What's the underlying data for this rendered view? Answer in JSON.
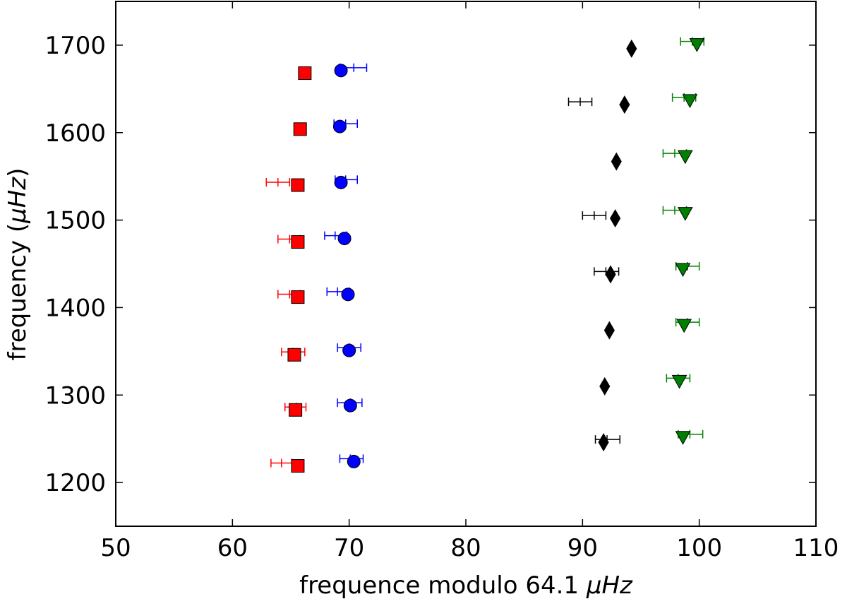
{
  "chart_data": {
    "type": "scatter",
    "title": "",
    "xlabel_prefix": "frequence modulo 64.1 ",
    "xlabel_unit": "μHz",
    "ylabel_prefix": "frequency (",
    "ylabel_unit": "μHz",
    "ylabel_suffix": ")",
    "xlim": [
      50,
      110
    ],
    "ylim": [
      1150,
      1750
    ],
    "xticks": [
      50,
      60,
      70,
      80,
      90,
      100,
      110
    ],
    "yticks": [
      1200,
      1300,
      1400,
      1500,
      1600,
      1700
    ],
    "grid": false,
    "series": [
      {
        "name": "red-squares",
        "marker": "square",
        "color": "#ff0000",
        "points": [
          {
            "x": 65.6,
            "y": 1219,
            "err_x": 64.2,
            "err_lo": 63.3,
            "err_hi": 65.1
          },
          {
            "x": 65.4,
            "y": 1283,
            "err_x": 65.5,
            "err_lo": 64.5,
            "err_hi": 66.3
          },
          {
            "x": 65.3,
            "y": 1346,
            "err_x": 65.2,
            "err_lo": 64.2,
            "err_hi": 66.2
          },
          {
            "x": 65.6,
            "y": 1412,
            "err_x": 64.9,
            "err_lo": 63.9,
            "err_hi": 65.8
          },
          {
            "x": 65.6,
            "y": 1475,
            "err_x": 64.9,
            "err_lo": 63.9,
            "err_hi": 65.8
          },
          {
            "x": 65.6,
            "y": 1540,
            "err_x": 63.9,
            "err_lo": 62.9,
            "err_hi": 64.9
          },
          {
            "x": 65.8,
            "y": 1604,
            "err_x": null,
            "err_lo": null,
            "err_hi": null
          },
          {
            "x": 66.2,
            "y": 1668,
            "err_x": null,
            "err_lo": null,
            "err_hi": null
          }
        ]
      },
      {
        "name": "blue-circles",
        "marker": "circle",
        "color": "#0000ff",
        "points": [
          {
            "x": 70.4,
            "y": 1224,
            "err_x": 70.1,
            "err_lo": 69.2,
            "err_hi": 71.2
          },
          {
            "x": 70.1,
            "y": 1288,
            "err_x": 70.1,
            "err_lo": 69.0,
            "err_hi": 71.1
          },
          {
            "x": 70.0,
            "y": 1351,
            "err_x": 70.0,
            "err_lo": 69.0,
            "err_hi": 71.0
          },
          {
            "x": 69.9,
            "y": 1415,
            "err_x": 69.0,
            "err_lo": 68.1,
            "err_hi": 70.0
          },
          {
            "x": 69.6,
            "y": 1479,
            "err_x": 68.8,
            "err_lo": 67.9,
            "err_hi": 69.8
          },
          {
            "x": 69.3,
            "y": 1543,
            "err_x": 69.7,
            "err_lo": 68.8,
            "err_hi": 70.7
          },
          {
            "x": 69.2,
            "y": 1607,
            "err_x": 69.7,
            "err_lo": 68.7,
            "err_hi": 70.7
          },
          {
            "x": 69.3,
            "y": 1671,
            "err_x": 70.4,
            "err_lo": 69.2,
            "err_hi": 71.5
          }
        ]
      },
      {
        "name": "black-diamonds",
        "marker": "diamond",
        "color": "#000000",
        "points": [
          {
            "x": 91.8,
            "y": 1246,
            "err_x": 92.1,
            "err_lo": 91.1,
            "err_hi": 93.2
          },
          {
            "x": 91.9,
            "y": 1310,
            "err_x": null,
            "err_lo": null,
            "err_hi": null
          },
          {
            "x": 92.3,
            "y": 1374,
            "err_x": null,
            "err_lo": null,
            "err_hi": null
          },
          {
            "x": 92.4,
            "y": 1438,
            "err_x": 92.0,
            "err_lo": 91.0,
            "err_hi": 93.1
          },
          {
            "x": 92.8,
            "y": 1502,
            "err_x": 91.0,
            "err_lo": 90.0,
            "err_hi": 92.0
          },
          {
            "x": 92.9,
            "y": 1567,
            "err_x": null,
            "err_lo": null,
            "err_hi": null
          },
          {
            "x": 93.6,
            "y": 1632,
            "err_x": 89.8,
            "err_lo": 88.8,
            "err_hi": 90.8
          },
          {
            "x": 94.2,
            "y": 1696,
            "err_x": null,
            "err_lo": null,
            "err_hi": null
          }
        ]
      },
      {
        "name": "green-triangles",
        "marker": "triangle-down",
        "color": "#008000",
        "points": [
          {
            "x": 98.6,
            "y": 1252,
            "err_x": 99.2,
            "err_lo": 98.2,
            "err_hi": 100.3
          },
          {
            "x": 98.3,
            "y": 1316,
            "err_x": 98.2,
            "err_lo": 97.2,
            "err_hi": 99.2
          },
          {
            "x": 98.7,
            "y": 1380,
            "err_x": 99.0,
            "err_lo": 98.0,
            "err_hi": 100.0
          },
          {
            "x": 98.6,
            "y": 1444,
            "err_x": 99.0,
            "err_lo": 98.0,
            "err_hi": 100.0
          },
          {
            "x": 98.8,
            "y": 1508,
            "err_x": 97.9,
            "err_lo": 96.9,
            "err_hi": 98.9
          },
          {
            "x": 98.8,
            "y": 1573,
            "err_x": 97.9,
            "err_lo": 96.9,
            "err_hi": 98.9
          },
          {
            "x": 99.2,
            "y": 1637,
            "err_x": 98.7,
            "err_lo": 97.7,
            "err_hi": 99.7
          },
          {
            "x": 99.8,
            "y": 1701,
            "err_x": 99.4,
            "err_lo": 98.4,
            "err_hi": 100.4
          }
        ]
      }
    ]
  }
}
